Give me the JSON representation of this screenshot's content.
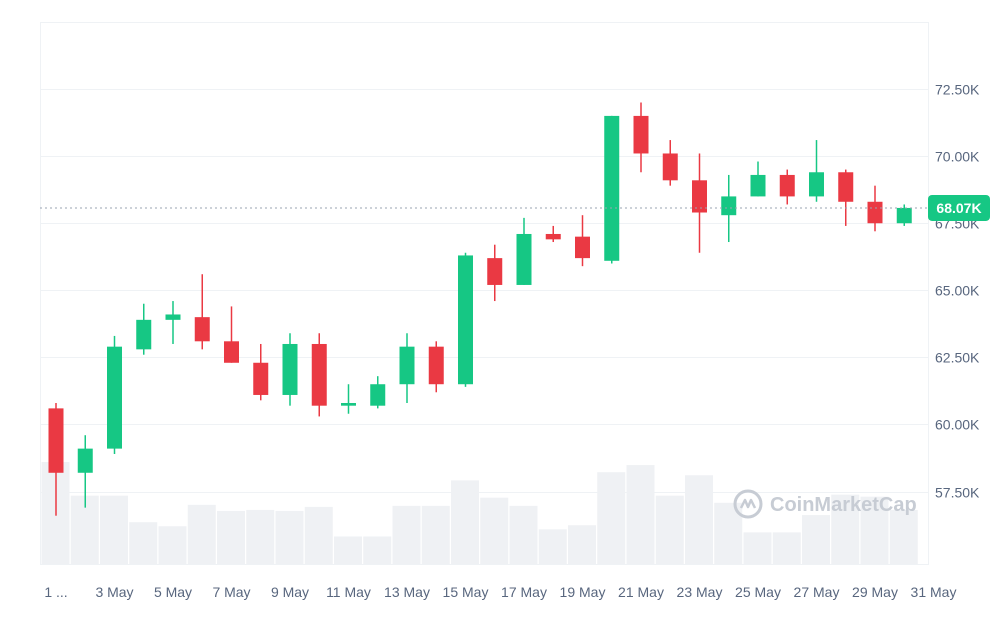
{
  "chart_data": {
    "type": "candlestick",
    "x_tick_labels": [
      "1 ...",
      "3 May",
      "5 May",
      "7 May",
      "9 May",
      "11 May",
      "13 May",
      "15 May",
      "17 May",
      "19 May",
      "21 May",
      "23 May",
      "25 May",
      "27 May",
      "29 May",
      "31 May"
    ],
    "y_tick_labels": [
      "57.50K",
      "60.00K",
      "62.50K",
      "65.00K",
      "67.50K",
      "70.00K",
      "72.50K"
    ],
    "y_tick_values": [
      57500,
      60000,
      62500,
      65000,
      67500,
      70000,
      72500
    ],
    "ylim": [
      54800,
      75000
    ],
    "current_price": 68070,
    "current_price_label": "68.07K",
    "grid": true,
    "colors": {
      "up": "#16c784",
      "down": "#ea3943",
      "volume": "#eff1f4",
      "grid": "#eff2f5",
      "badge": "#16c784",
      "price_line": "#9aa3b2"
    },
    "watermark": "CoinMarketCap",
    "volume_max": 100,
    "candles": [
      {
        "day": 1,
        "open": 60600,
        "high": 60800,
        "low": 56600,
        "close": 58200,
        "volume": 100
      },
      {
        "day": 2,
        "open": 58200,
        "high": 59600,
        "low": 56900,
        "close": 59100,
        "volume": 67
      },
      {
        "day": 3,
        "open": 59100,
        "high": 63300,
        "low": 58900,
        "close": 62900,
        "volume": 67
      },
      {
        "day": 4,
        "open": 62800,
        "high": 64500,
        "low": 62600,
        "close": 63900,
        "volume": 41
      },
      {
        "day": 5,
        "open": 63900,
        "high": 64600,
        "low": 63000,
        "close": 64100,
        "volume": 37
      },
      {
        "day": 6,
        "open": 64000,
        "high": 65600,
        "low": 62800,
        "close": 63100,
        "volume": 58
      },
      {
        "day": 7,
        "open": 63100,
        "high": 64400,
        "low": 62300,
        "close": 62300,
        "volume": 52
      },
      {
        "day": 8,
        "open": 62300,
        "high": 63000,
        "low": 60900,
        "close": 61100,
        "volume": 53
      },
      {
        "day": 9,
        "open": 61100,
        "high": 63400,
        "low": 60700,
        "close": 63000,
        "volume": 52
      },
      {
        "day": 10,
        "open": 63000,
        "high": 63400,
        "low": 60300,
        "close": 60700,
        "volume": 56
      },
      {
        "day": 11,
        "open": 60700,
        "high": 61500,
        "low": 60400,
        "close": 60800,
        "volume": 27
      },
      {
        "day": 12,
        "open": 60700,
        "high": 61800,
        "low": 60600,
        "close": 61500,
        "volume": 27
      },
      {
        "day": 13,
        "open": 61500,
        "high": 63400,
        "low": 60800,
        "close": 62900,
        "volume": 57
      },
      {
        "day": 14,
        "open": 62900,
        "high": 63100,
        "low": 61200,
        "close": 61500,
        "volume": 57
      },
      {
        "day": 15,
        "open": 61500,
        "high": 66400,
        "low": 61400,
        "close": 66300,
        "volume": 82
      },
      {
        "day": 16,
        "open": 66200,
        "high": 66700,
        "low": 64600,
        "close": 65200,
        "volume": 65
      },
      {
        "day": 17,
        "open": 65200,
        "high": 67700,
        "low": 65200,
        "close": 67100,
        "volume": 57
      },
      {
        "day": 18,
        "open": 67100,
        "high": 67400,
        "low": 66800,
        "close": 66900,
        "volume": 34
      },
      {
        "day": 19,
        "open": 67000,
        "high": 67800,
        "low": 65900,
        "close": 66200,
        "volume": 38
      },
      {
        "day": 20,
        "open": 66100,
        "high": 71500,
        "low": 66000,
        "close": 71500,
        "volume": 90
      },
      {
        "day": 21,
        "open": 71500,
        "high": 72000,
        "low": 69400,
        "close": 70100,
        "volume": 97
      },
      {
        "day": 22,
        "open": 70100,
        "high": 70600,
        "low": 68900,
        "close": 69100,
        "volume": 67
      },
      {
        "day": 23,
        "open": 69100,
        "high": 70100,
        "low": 66400,
        "close": 67900,
        "volume": 87
      },
      {
        "day": 24,
        "open": 67800,
        "high": 69300,
        "low": 66800,
        "close": 68500,
        "volume": 60
      },
      {
        "day": 25,
        "open": 68500,
        "high": 69800,
        "low": 68500,
        "close": 69300,
        "volume": 31
      },
      {
        "day": 26,
        "open": 69300,
        "high": 69500,
        "low": 68200,
        "close": 68500,
        "volume": 31
      },
      {
        "day": 27,
        "open": 68500,
        "high": 70600,
        "low": 68300,
        "close": 69400,
        "volume": 48
      },
      {
        "day": 28,
        "open": 69400,
        "high": 69500,
        "low": 67400,
        "close": 68300,
        "volume": 68
      },
      {
        "day": 29,
        "open": 68300,
        "high": 68900,
        "low": 67200,
        "close": 67500,
        "volume": 66
      },
      {
        "day": 30,
        "open": 67500,
        "high": 68200,
        "low": 67400,
        "close": 68070,
        "volume": 53
      }
    ]
  }
}
